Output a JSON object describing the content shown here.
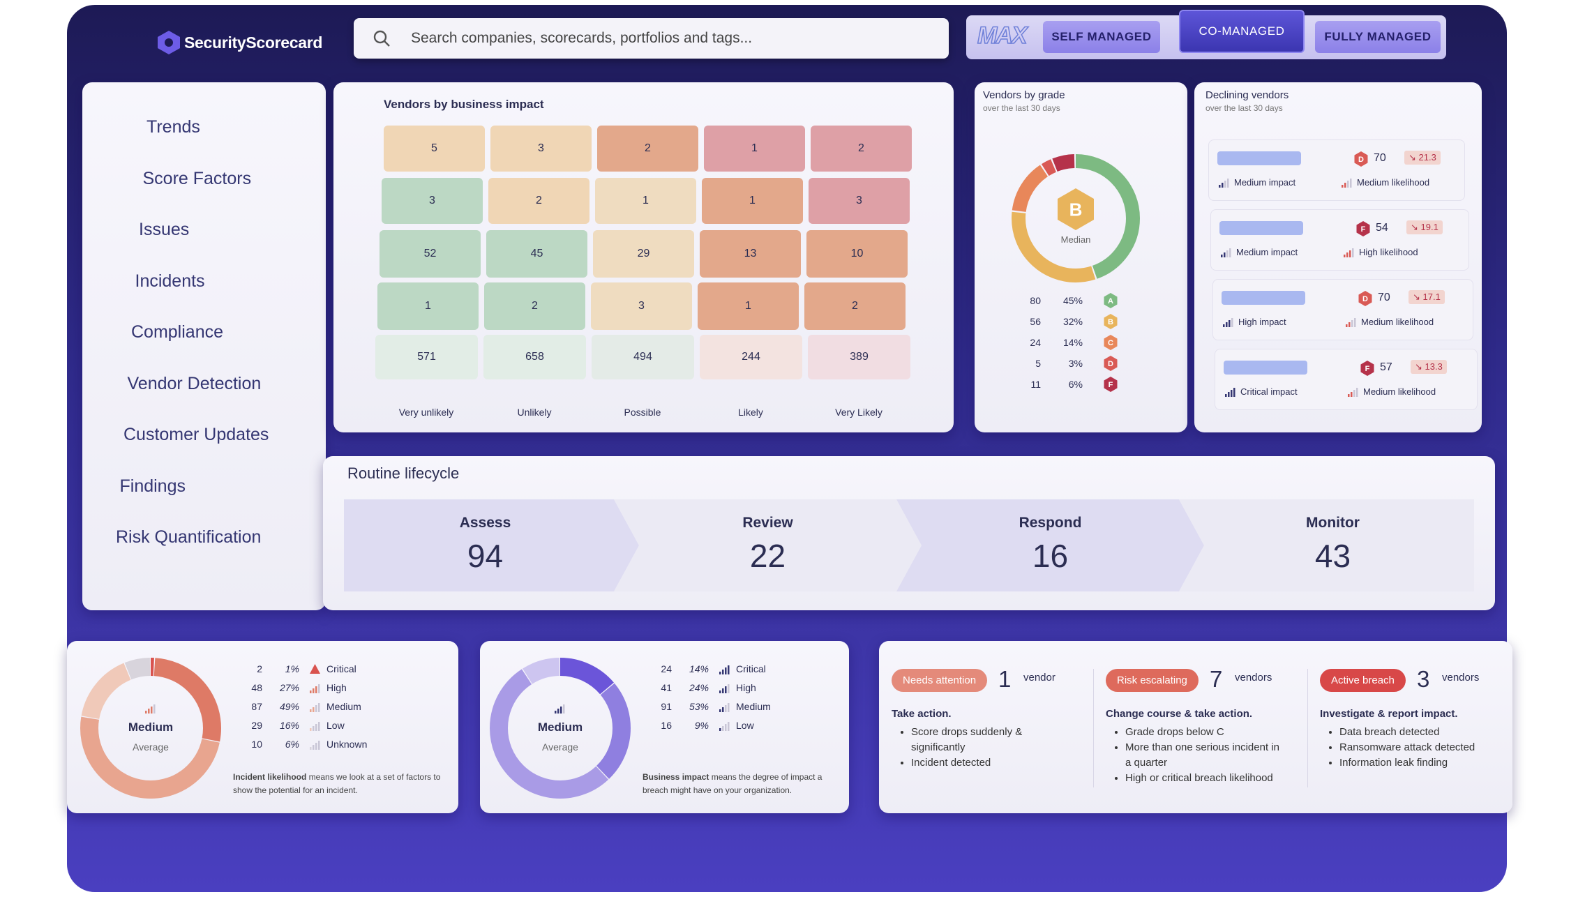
{
  "brand": "SecurityScorecard",
  "search_placeholder": "Search companies, scorecards, portfolios and tags...",
  "logo_text": "MAX",
  "tabs": [
    "SELF MANAGED",
    "CO-MANAGED",
    "FULLY MANAGED"
  ],
  "sidebar": [
    "Trends",
    "Score Factors",
    "Issues",
    "Incidents",
    "Compliance",
    "Vendor Detection",
    "Customer Updates",
    "Findings",
    "Risk Quantification"
  ],
  "impact_matrix": {
    "title": "Vendors by business impact",
    "rows": [
      [
        5,
        3,
        2,
        1,
        2
      ],
      [
        3,
        2,
        1,
        1,
        3
      ],
      [
        52,
        45,
        29,
        13,
        10
      ],
      [
        1,
        2,
        3,
        1,
        2
      ]
    ],
    "totals": [
      571,
      658,
      494,
      244,
      389
    ],
    "columns": [
      "Very unlikely",
      "Unlikely",
      "Possible",
      "Likely",
      "Very Likely"
    ]
  },
  "grade": {
    "title": "Vendors by grade",
    "subtitle": "over the last 30 days",
    "median_grade": "B",
    "median_label": "Median",
    "rows": [
      {
        "count": 80,
        "percent": 45,
        "percent_label": "45%",
        "grade": "A",
        "color": "#7dba82"
      },
      {
        "count": 56,
        "percent": 32,
        "percent_label": "32%",
        "grade": "B",
        "color": "#e8b45c"
      },
      {
        "count": 24,
        "percent": 14,
        "percent_label": "14%",
        "grade": "C",
        "color": "#e8875a"
      },
      {
        "count": 5,
        "percent": 3,
        "percent_label": "3%",
        "grade": "D",
        "color": "#d95a55"
      },
      {
        "count": 11,
        "percent": 6,
        "percent_label": "6%",
        "grade": "F",
        "color": "#b5324a"
      }
    ]
  },
  "declining": {
    "title": "Declining vendors",
    "subtitle": "over the last 30 days",
    "items": [
      {
        "grade": "D",
        "score": 70,
        "change": "↘ 21.3",
        "impact": "Medium impact",
        "likelihood": "Medium likelihood"
      },
      {
        "grade": "F",
        "score": 54,
        "change": "↘ 19.1",
        "impact": "Medium impact",
        "likelihood": "High likelihood"
      },
      {
        "grade": "D",
        "score": 70,
        "change": "↘ 17.1",
        "impact": "High impact",
        "likelihood": "Medium likelihood"
      },
      {
        "grade": "F",
        "score": 57,
        "change": "↘ 13.3",
        "impact": "Critical impact",
        "likelihood": "Medium likelihood"
      }
    ]
  },
  "lifecycle": {
    "title": "Routine lifecycle",
    "stages": [
      {
        "name": "Assess",
        "count": 94
      },
      {
        "name": "Review",
        "count": 22
      },
      {
        "name": "Respond",
        "count": 16
      },
      {
        "name": "Monitor",
        "count": 43
      }
    ]
  },
  "likelihood": {
    "center": "Medium",
    "center_sub": "Average",
    "note_bold": "Incident likelihood",
    "note": " means we look at a set of factors to show the potential for an incident.",
    "rows": [
      {
        "count": 2,
        "percent": 1,
        "percent_label": "1%",
        "label": "Critical",
        "color": "#d9534f"
      },
      {
        "count": 48,
        "percent": 27,
        "percent_label": "27%",
        "label": "High",
        "color": "#de7a66"
      },
      {
        "count": 87,
        "percent": 49,
        "percent_label": "49%",
        "label": "Medium",
        "color": "#e8a58f"
      },
      {
        "count": 29,
        "percent": 16,
        "percent_label": "16%",
        "label": "Low",
        "color": "#f0c9b9"
      },
      {
        "count": 10,
        "percent": 6,
        "percent_label": "6%",
        "label": "Unknown",
        "color": "#d8d4dc"
      }
    ]
  },
  "impact": {
    "center": "Medium",
    "center_sub": "Average",
    "note_bold": "Business impact",
    "note": " means the degree of impact a breach might have on your organization.",
    "rows": [
      {
        "count": 24,
        "percent": 14,
        "percent_label": "14%",
        "label": "Critical",
        "color": "#6b55d9"
      },
      {
        "count": 41,
        "percent": 24,
        "percent_label": "24%",
        "label": "High",
        "color": "#8f7fe0"
      },
      {
        "count": 91,
        "percent": 53,
        "percent_label": "53%",
        "label": "Medium",
        "color": "#a99be6"
      },
      {
        "count": 16,
        "percent": 9,
        "percent_label": "9%",
        "label": "Low",
        "color": "#cdc5f0"
      }
    ]
  },
  "alerts": [
    {
      "badge": "Needs attention",
      "count": 1,
      "unit": "vendor",
      "heading": "Take action.",
      "bullets": [
        "Score drops suddenly & significantly",
        "Incident detected"
      ]
    },
    {
      "badge": "Risk escalating",
      "count": 7,
      "unit": "vendors",
      "heading": "Change course & take action.",
      "bullets": [
        "Grade drops below C",
        "More than one serious incident in a quarter",
        "High or critical breach likelihood"
      ]
    },
    {
      "badge": "Active breach",
      "count": 3,
      "unit": "vendors",
      "heading": "Investigate & report impact.",
      "bullets": [
        "Data breach detected",
        "Ransomware attack detected",
        "Information leak finding"
      ]
    }
  ]
}
